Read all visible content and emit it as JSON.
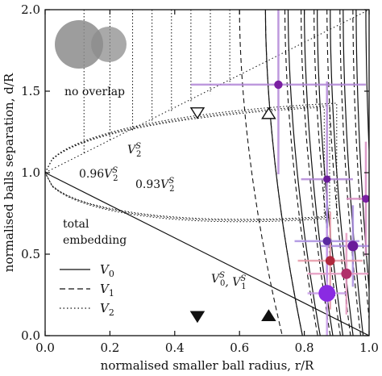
{
  "chart_data": {
    "type": "scatter",
    "xlabel": "normalised smaller ball radius,  r/R",
    "ylabel": "normalised balls separation,  d/R",
    "xlim": [
      0.0,
      1.0
    ],
    "ylim": [
      0.0,
      2.0
    ],
    "xticks": [
      "0.0",
      "0.2",
      "0.4",
      "0.6",
      "0.8",
      "1.0"
    ],
    "yticks": [
      "0.0",
      "0.5",
      "1.0",
      "1.5",
      "2.0"
    ],
    "grid": false,
    "annotations": {
      "no_overlap": "no overlap",
      "total_embedding_line1": "total",
      "total_embedding_line2": "embedding",
      "v2s": "V2S",
      "v2s_096": "0.96 V2S",
      "v2s_093": "0.93 V2S",
      "v0s_v1s": "V0S, V1S"
    },
    "legend": [
      {
        "label": "V0",
        "style": "solid"
      },
      {
        "label": "V1",
        "style": "dashed"
      },
      {
        "label": "V2",
        "style": "dotted"
      }
    ],
    "boundary_line": [
      [
        0.0,
        1.0
      ],
      [
        1.0,
        0.0
      ]
    ],
    "contour_V0": [
      0.68,
      0.75,
      0.8,
      0.84,
      0.88,
      0.92,
      0.96,
      0.99
    ],
    "contour_V1": [
      0.6,
      0.68,
      0.74,
      0.79,
      0.83,
      0.87,
      0.91,
      0.95
    ],
    "contour_V2": [
      0.12,
      0.2,
      0.27,
      0.33,
      0.39,
      0.45,
      0.51,
      0.57
    ],
    "V2S_curves": [
      {
        "label": "V2S",
        "factor": 1.0
      },
      {
        "label": "0.96 V2S",
        "factor": 0.96
      },
      {
        "label": "0.93 V2S",
        "factor": 0.93
      }
    ],
    "markers": [
      {
        "symbol": "triangle-down-open",
        "x": 0.47,
        "y": 1.37
      },
      {
        "symbol": "triangle-up-open",
        "x": 0.69,
        "y": 1.36
      },
      {
        "symbol": "triangle-down-filled",
        "x": 0.47,
        "y": 0.12
      },
      {
        "symbol": "triangle-up-filled",
        "x": 0.69,
        "y": 0.12
      }
    ],
    "points": [
      {
        "x": 0.72,
        "y": 1.54,
        "xerr": 0.27,
        "yerr": 0.55,
        "size": 0.8,
        "color": "#7a1fa2",
        "bar_color": "#b388d8"
      },
      {
        "x": 0.87,
        "y": 0.96,
        "xerr": 0.08,
        "yerr": 0.6,
        "size": 0.7,
        "color": "#6a1b9a",
        "bar_color": "#b388d8"
      },
      {
        "x": 0.99,
        "y": 0.84,
        "xerr": 0.06,
        "yerr": 0.35,
        "size": 0.75,
        "color": "#7a1fa2",
        "bar_color": "#d88ac0"
      },
      {
        "x": 0.87,
        "y": 0.58,
        "xerr": 0.1,
        "yerr": 0.25,
        "size": 0.8,
        "color": "#5b2aa0",
        "bar_color": "#a98ce0"
      },
      {
        "x": 0.95,
        "y": 0.55,
        "xerr": 0.1,
        "yerr": 0.25,
        "size": 1.0,
        "color": "#6a1b9a",
        "bar_color": "#a98ce0"
      },
      {
        "x": 0.88,
        "y": 0.46,
        "xerr": 0.1,
        "yerr": 0.3,
        "size": 0.9,
        "color": "#b0283c",
        "bar_color": "#e69aa8"
      },
      {
        "x": 0.93,
        "y": 0.38,
        "xerr": 0.12,
        "yerr": 0.25,
        "size": 1.0,
        "color": "#b0306a",
        "bar_color": "#e69ac0"
      },
      {
        "x": 0.87,
        "y": 0.26,
        "xerr": 0.06,
        "yerr": 0.4,
        "size": 1.6,
        "color": "#8a2be2",
        "bar_color": "#c79be8"
      }
    ]
  }
}
